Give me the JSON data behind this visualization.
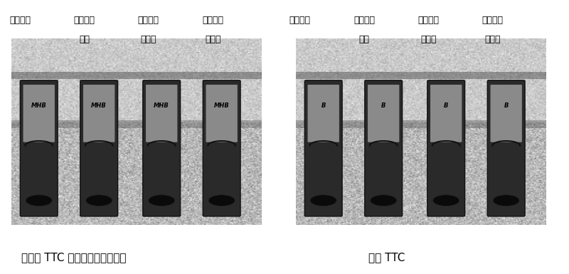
{
  "fig_width": 8.0,
  "fig_height": 3.85,
  "bg_color": "#ffffff",
  "left_photo_labels_top": [
    "人肠杆菌",
    "铜绿假单",
    "肺炎克雷",
    "金黄色葡"
  ],
  "left_photo_labels_top2": [
    "",
    "胞菌",
    "伯氏菌",
    "萄球菌"
  ],
  "right_photo_labels_top": [
    "人肠杆菌",
    "铜绿假单",
    "肺炎克雷",
    "金黄色葡"
  ],
  "right_photo_labels_top2": [
    "",
    "胞菌",
    "伯氏菌",
    "萄球菌"
  ],
  "left_caption": "含有用 TTC 制备的显色指示颗粒",
  "right_caption": "仅含 TTC",
  "photo_bg": "#c8c8c8",
  "tube_dark": "#1a1a1a",
  "tube_mid": "#555555",
  "tube_light": "#888888",
  "label_font_size": 9,
  "caption_font_size": 11
}
